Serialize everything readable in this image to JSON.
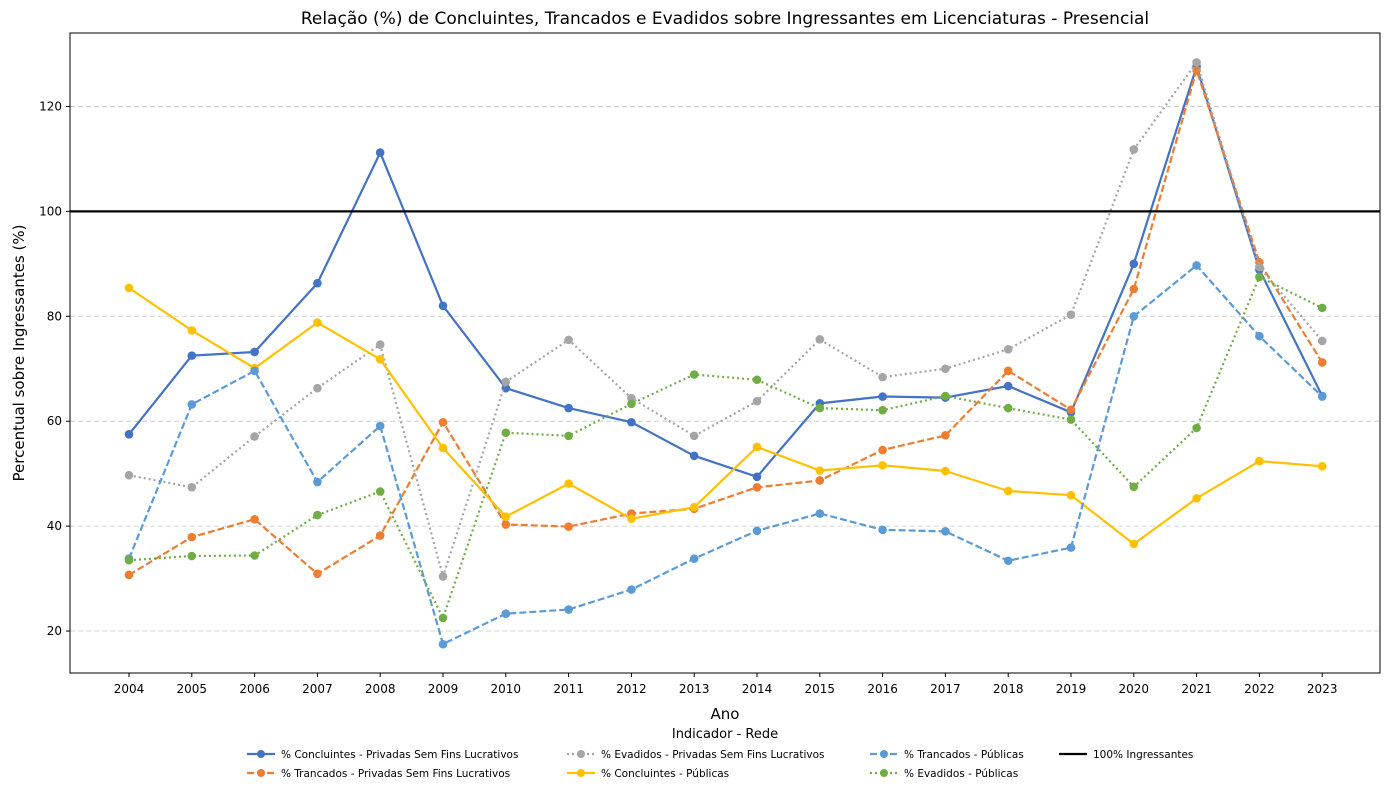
{
  "chart_data": {
    "type": "line",
    "title": "Relação (%) de Concluintes, Trancados e Evadidos sobre Ingressantes em Licenciaturas - Presencial",
    "xlabel": "Ano",
    "ylabel": "Percentual sobre Ingressantes (%)",
    "categories": [
      "2004",
      "2005",
      "2006",
      "2007",
      "2008",
      "2009",
      "2010",
      "2011",
      "2012",
      "2013",
      "2014",
      "2015",
      "2016",
      "2017",
      "2018",
      "2019",
      "2020",
      "2021",
      "2022",
      "2023"
    ],
    "ylim": [
      12,
      134
    ],
    "yticks": [
      20,
      40,
      60,
      80,
      100,
      120
    ],
    "grid": "horizontal-dashed",
    "legend_title": "Indicador - Rede",
    "legend_position": "bottom-center",
    "reference_line": {
      "name": "100% Ingressantes",
      "value": 100,
      "color": "#000000"
    },
    "series": [
      {
        "name": "% Concluintes - Privadas Sem Fins Lucrativos",
        "color": "#4472c4",
        "style": "solid",
        "values": [
          57.5,
          72.5,
          73.2,
          86.3,
          111.2,
          82.0,
          66.3,
          62.5,
          59.8,
          53.4,
          49.4,
          63.4,
          64.7,
          64.5,
          66.7,
          61.7,
          90.0,
          127.6,
          88.9,
          64.8
        ]
      },
      {
        "name": "% Trancados - Privadas Sem Fins Lucrativos",
        "color": "#ed7d31",
        "style": "dashed",
        "values": [
          30.7,
          37.9,
          41.3,
          30.9,
          38.2,
          59.8,
          40.3,
          39.9,
          42.4,
          43.3,
          47.4,
          48.7,
          54.5,
          57.3,
          69.6,
          62.2,
          85.2,
          126.9,
          90.3,
          71.2
        ]
      },
      {
        "name": "% Evadidos - Privadas Sem Fins Lucrativos",
        "color": "#a5a5a5",
        "style": "dotted",
        "values": [
          49.7,
          47.4,
          57.1,
          66.3,
          74.6,
          30.4,
          67.5,
          75.5,
          64.4,
          57.2,
          63.8,
          75.6,
          68.4,
          70.0,
          73.7,
          80.3,
          111.8,
          128.4,
          89.4,
          75.3
        ]
      },
      {
        "name": "% Concluintes - Públicas",
        "color": "#ffc000",
        "style": "solid",
        "values": [
          85.4,
          77.3,
          70.1,
          78.8,
          71.8,
          54.9,
          41.8,
          48.1,
          41.4,
          43.6,
          55.1,
          50.6,
          51.6,
          50.5,
          46.7,
          45.9,
          36.6,
          45.3,
          52.4,
          51.4
        ]
      },
      {
        "name": "% Trancados - Públicas",
        "color": "#5b9bd5",
        "style": "dashed",
        "values": [
          33.8,
          63.2,
          69.6,
          48.4,
          59.1,
          17.5,
          23.3,
          24.1,
          27.9,
          33.8,
          39.1,
          42.4,
          39.3,
          39.0,
          33.4,
          35.9,
          80.0,
          89.7,
          76.2,
          64.7
        ]
      },
      {
        "name": "% Evadidos - Públicas",
        "color": "#70ad47",
        "style": "dotted",
        "values": [
          33.5,
          34.3,
          34.4,
          42.1,
          46.6,
          22.5,
          57.8,
          57.2,
          63.3,
          68.9,
          67.9,
          62.5,
          62.1,
          64.8,
          62.5,
          60.3,
          47.5,
          58.7,
          87.5,
          81.6
        ]
      }
    ]
  }
}
